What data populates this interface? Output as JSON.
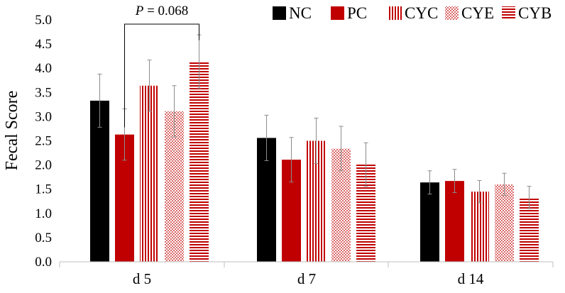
{
  "chart_data": {
    "type": "bar",
    "title": "",
    "xlabel": "",
    "ylabel": "Fecal Score",
    "ylim": [
      0,
      5
    ],
    "yticks": [
      "0.0",
      "0.5",
      "1.0",
      "1.5",
      "2.0",
      "2.5",
      "3.0",
      "3.5",
      "4.0",
      "4.5",
      "5.0"
    ],
    "categories": [
      "d 5",
      "d 7",
      "d 14"
    ],
    "series": [
      {
        "name": "NC",
        "pattern": "solid",
        "color": "#000000",
        "values": [
          3.33,
          2.56,
          1.64
        ],
        "errors": [
          0.55,
          0.47,
          0.24
        ]
      },
      {
        "name": "PC",
        "pattern": "solid",
        "color": "#c00000",
        "values": [
          2.63,
          2.11,
          1.67
        ],
        "errors": [
          0.53,
          0.46,
          0.24
        ]
      },
      {
        "name": "CYC",
        "pattern": "vertical-stripes",
        "color": "#c00000",
        "values": [
          3.64,
          2.5,
          1.45
        ],
        "errors": [
          0.53,
          0.47,
          0.23
        ]
      },
      {
        "name": "CYE",
        "pattern": "dots",
        "color": "#c00000",
        "values": [
          3.11,
          2.34,
          1.6
        ],
        "errors": [
          0.53,
          0.46,
          0.23
        ]
      },
      {
        "name": "CYB",
        "pattern": "horizontal-stripes",
        "color": "#c00000",
        "values": [
          4.14,
          2.01,
          1.33
        ],
        "errors": [
          0.55,
          0.45,
          0.23
        ]
      }
    ],
    "annotation": {
      "label_italic": "P",
      "label_rest": " = 0.068",
      "between": [
        "PC",
        "CYB"
      ],
      "category": "d 5"
    },
    "legend_position": "top-right"
  }
}
